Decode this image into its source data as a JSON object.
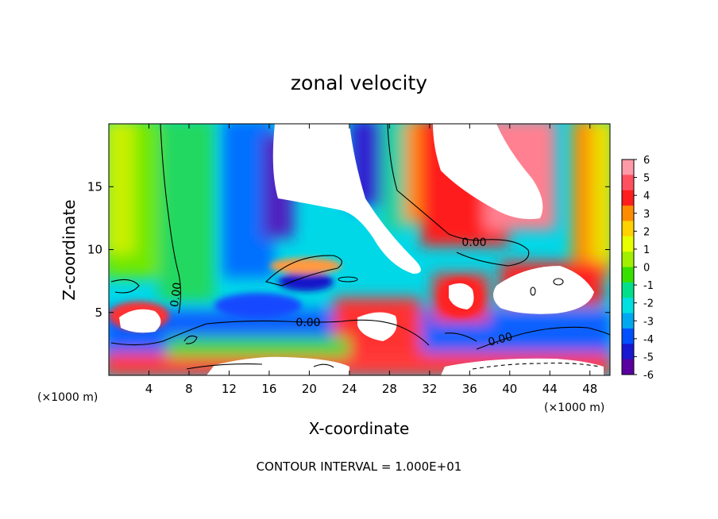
{
  "chart_data": {
    "type": "heatmap",
    "title": "zonal velocity",
    "xlabel": "X-coordinate",
    "ylabel": "Z-coordinate",
    "x_unit_left": "(×1000 m)",
    "x_unit_right": "(×1000 m)",
    "footer": "CONTOUR INTERVAL = 1.000E+01",
    "xlim": [
      0,
      50
    ],
    "ylim": [
      0,
      20
    ],
    "x_ticks": [
      4,
      8,
      12,
      16,
      20,
      24,
      28,
      32,
      36,
      40,
      44,
      48
    ],
    "y_ticks": [
      5,
      10,
      15
    ],
    "colorbar": {
      "min": -6,
      "max": 6,
      "labels": [
        6,
        5,
        4,
        3,
        2,
        1,
        0,
        -1,
        -2,
        -3,
        -4,
        -5,
        -6
      ],
      "colors": [
        "#ff9aa8",
        "#ff5060",
        "#ff1e1e",
        "#ff8c00",
        "#ffd200",
        "#e8ff00",
        "#a0f000",
        "#38e000",
        "#00e08a",
        "#00e0e0",
        "#00a8f0",
        "#0050ff",
        "#1818d0",
        "#5a00a0"
      ]
    },
    "contour_labels": [
      "0.00",
      "0.00",
      "0.00",
      "0.00"
    ]
  }
}
